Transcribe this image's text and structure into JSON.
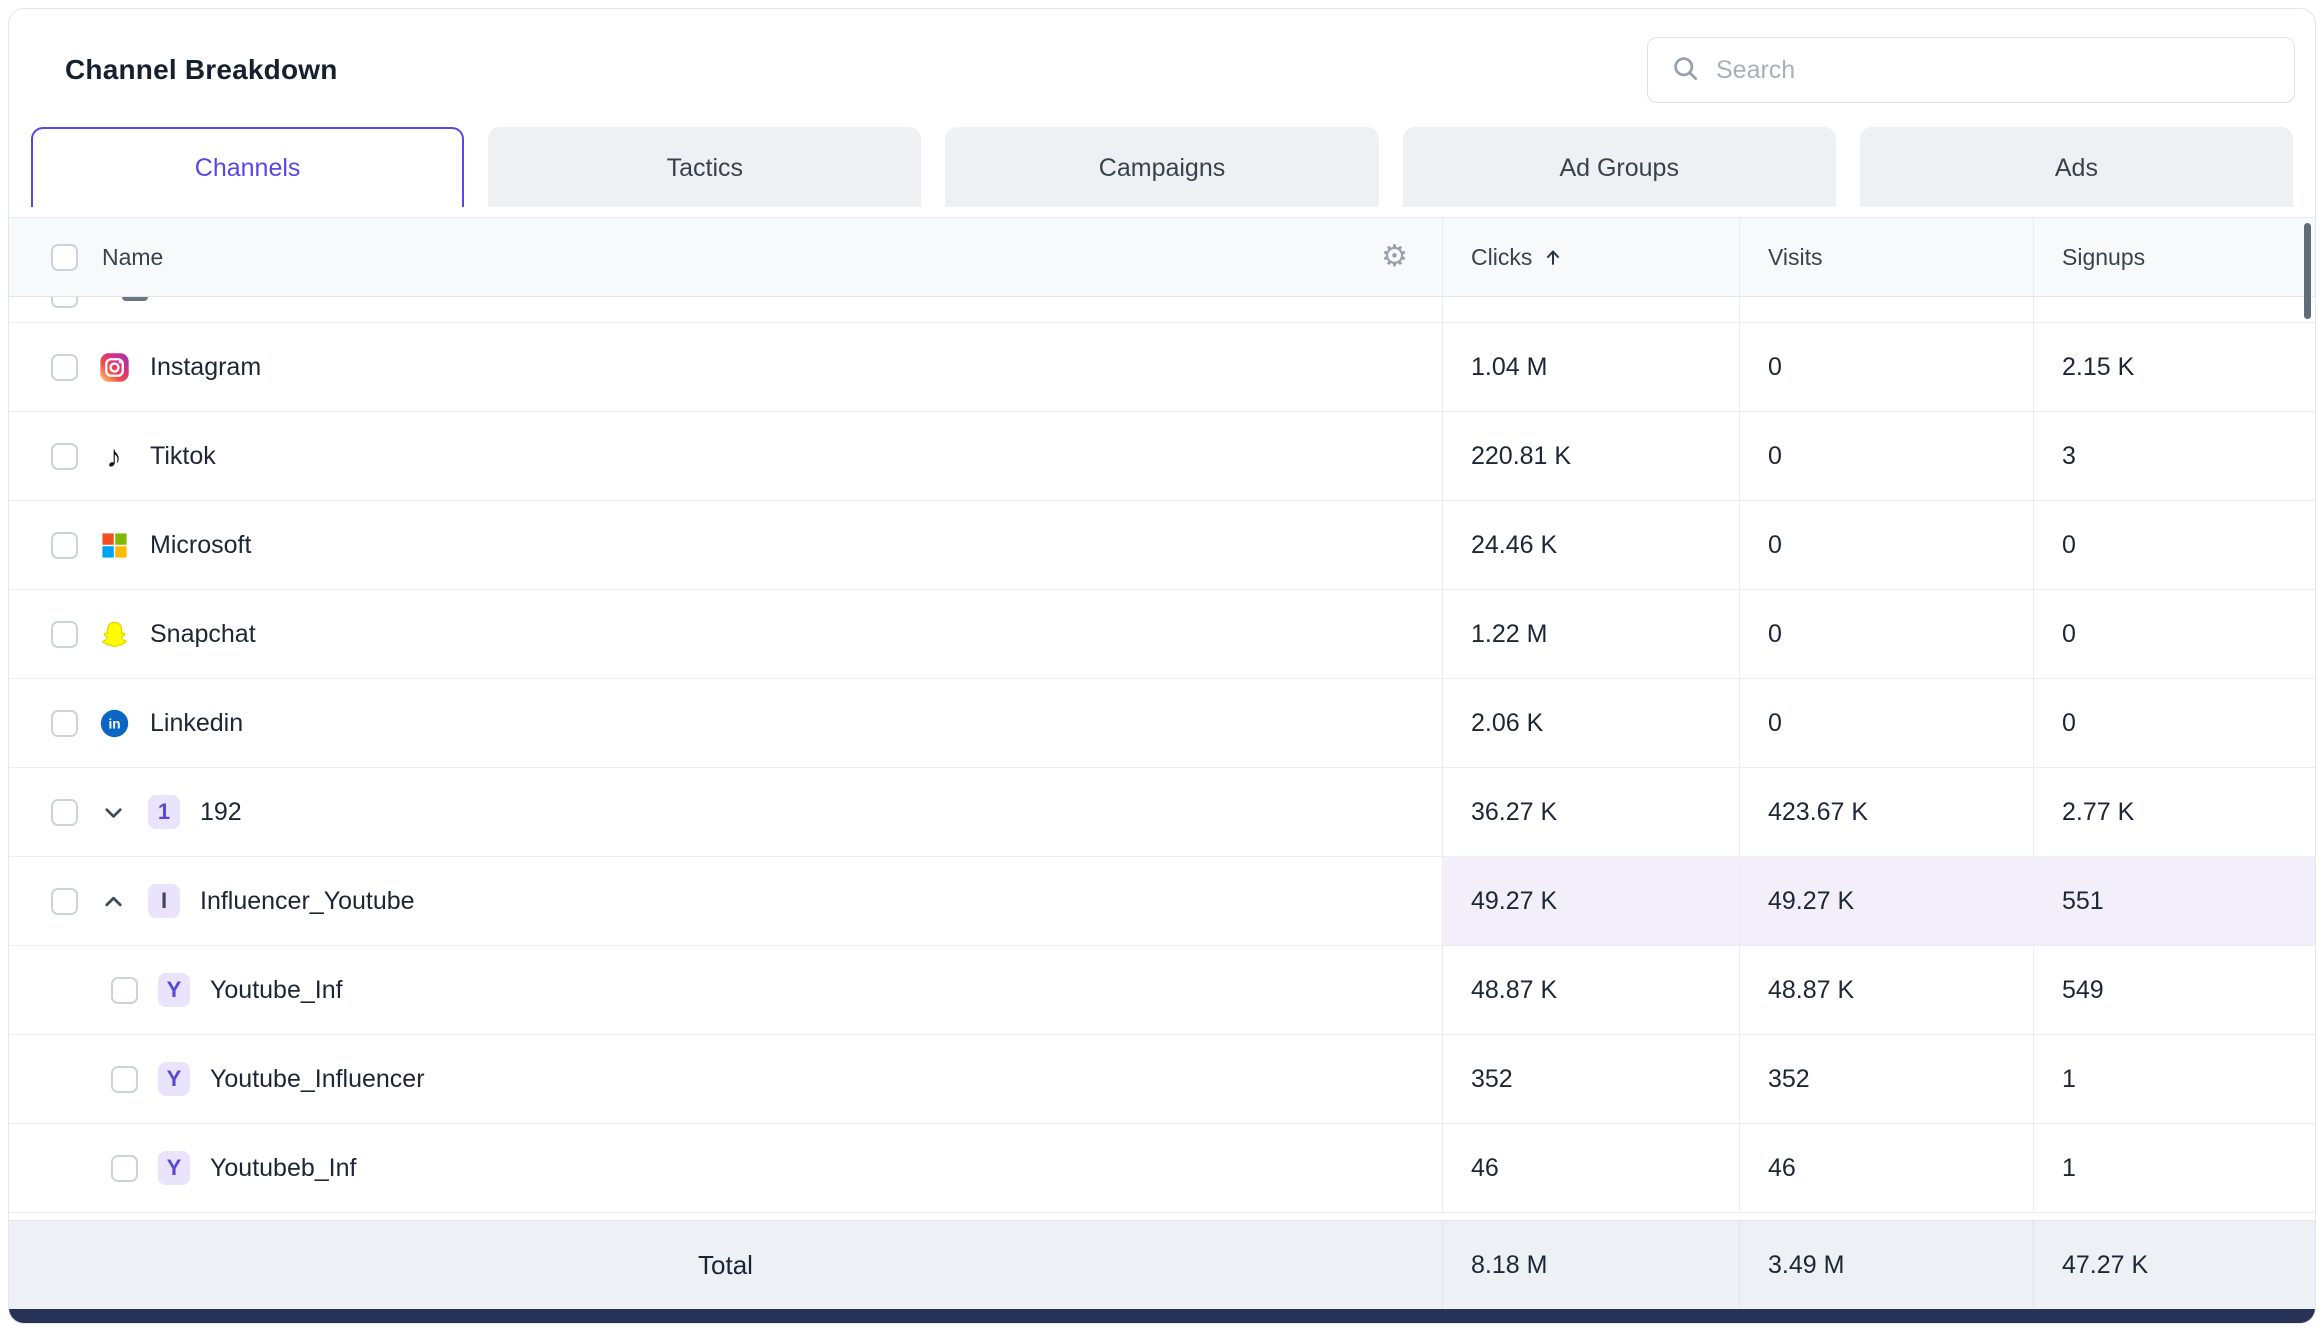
{
  "colors": {
    "accent": "#5847e6",
    "highlight_row_bg": "#f2effb",
    "total_row_bg": "#edf1f6",
    "badge_bg": "#e9e4fb",
    "badge_purple": "#5a49d6",
    "badge_dark": "#3f4856",
    "footer_bar": "#273256"
  },
  "header": {
    "title": "Channel Breakdown",
    "search_placeholder": "Search"
  },
  "tabs": [
    {
      "label": "Channels",
      "active": true
    },
    {
      "label": "Tactics",
      "active": false
    },
    {
      "label": "Campaigns",
      "active": false
    },
    {
      "label": "Ad Groups",
      "active": false
    },
    {
      "label": "Ads",
      "active": false
    }
  ],
  "table": {
    "columns": [
      {
        "key": "name",
        "label": "Name"
      },
      {
        "key": "clicks",
        "label": "Clicks",
        "sort": "asc"
      },
      {
        "key": "visits",
        "label": "Visits"
      },
      {
        "key": "signups",
        "label": "Signups"
      }
    ],
    "rows": [
      {
        "name": "Instagram",
        "icon": "instagram-icon",
        "level": 0,
        "clicks": "1.04 M",
        "visits": "0",
        "signups": "2.15 K"
      },
      {
        "name": "Tiktok",
        "icon": "tiktok-icon",
        "level": 0,
        "clicks": "220.81 K",
        "visits": "0",
        "signups": "3"
      },
      {
        "name": "Microsoft",
        "icon": "microsoft-icon",
        "level": 0,
        "clicks": "24.46 K",
        "visits": "0",
        "signups": "0"
      },
      {
        "name": "Snapchat",
        "icon": "snapchat-icon",
        "level": 0,
        "clicks": "1.22 M",
        "visits": "0",
        "signups": "0"
      },
      {
        "name": "Linkedin",
        "icon": "linkedin-icon",
        "level": 0,
        "clicks": "2.06 K",
        "visits": "0",
        "signups": "0"
      },
      {
        "name": "192",
        "badge": "1",
        "badge_color": "#5a49d6",
        "chevron": "down",
        "level": 0,
        "clicks": "36.27 K",
        "visits": "423.67 K",
        "signups": "2.77 K"
      },
      {
        "name": "Influencer_Youtube",
        "badge": "I",
        "badge_color": "#3f4856",
        "chevron": "up",
        "highlight": true,
        "level": 0,
        "clicks": "49.27 K",
        "visits": "49.27 K",
        "signups": "551"
      },
      {
        "name": "Youtube_Inf",
        "badge": "Y",
        "badge_color": "#5a49d6",
        "level": 1,
        "clicks": "48.87 K",
        "visits": "48.87 K",
        "signups": "549"
      },
      {
        "name": "Youtube_Influencer",
        "badge": "Y",
        "badge_color": "#5a49d6",
        "level": 1,
        "clicks": "352",
        "visits": "352",
        "signups": "1"
      },
      {
        "name": "Youtubeb_Inf",
        "badge": "Y",
        "badge_color": "#5a49d6",
        "level": 1,
        "clicks": "46",
        "visits": "46",
        "signups": "1"
      }
    ],
    "total": {
      "label": "Total",
      "clicks": "8.18 M",
      "visits": "3.49 M",
      "signups": "47.27 K"
    }
  }
}
